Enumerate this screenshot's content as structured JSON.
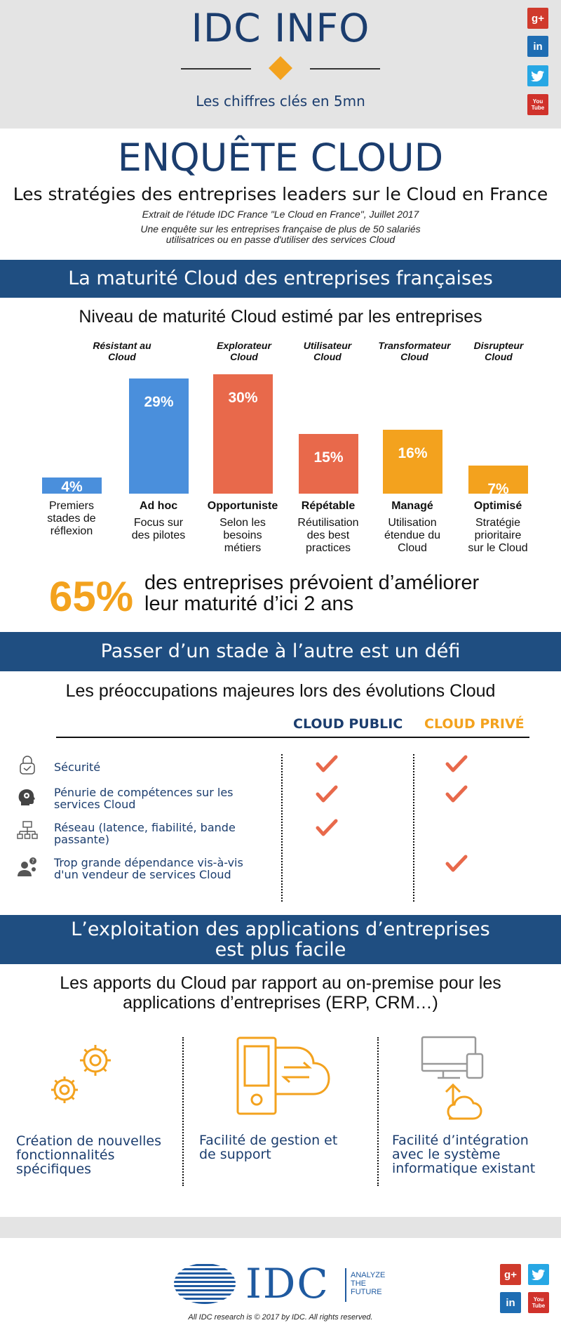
{
  "header": {
    "logo": "IDC INFO",
    "tagline": "Les chiffres clés en 5mn"
  },
  "social": {
    "googleplus": "g+",
    "linkedin": "in",
    "twitter": "t",
    "youtube": "You Tube"
  },
  "title": "ENQUÊTE CLOUD",
  "subtitle": "Les stratégies des entreprises leaders sur le Cloud en France",
  "source_line": "Extrait de l'étude IDC France \"Le Cloud en France\", Juillet 2017",
  "desc_line1": "Une enquête sur les entreprises française de plus de 50 salariés",
  "desc_line2": "utilisatrices ou en passe d'utiliser des services Cloud",
  "section1": {
    "band": "La maturité Cloud des entreprises françaises",
    "heading": "Niveau de maturité Cloud estimé par les entreprises"
  },
  "chart_data": {
    "type": "bar",
    "title": "Niveau de maturité Cloud estimé par les entreprises",
    "categories": [
      "Premiers stades de réflexion",
      "Ad hoc",
      "Opportuniste",
      "Répétable",
      "Managé",
      "Optimisé"
    ],
    "values": [
      4,
      29,
      30,
      15,
      16,
      7
    ],
    "value_labels": [
      "4%",
      "29%",
      "30%",
      "15%",
      "16%",
      "7%"
    ],
    "colors": [
      "#4a8fdc",
      "#4a8fdc",
      "#e8694b",
      "#e8694b",
      "#f3a21e",
      "#f3a21e"
    ],
    "group_labels": [
      {
        "l1": "Résistant au",
        "l2": "Cloud"
      },
      {
        "l1": "Explorateur",
        "l2": "Cloud"
      },
      {
        "l1": "Utilisateur",
        "l2": "Cloud"
      },
      {
        "l1": "Transformateur",
        "l2": "Cloud"
      },
      {
        "l1": "Disrupteur",
        "l2": "Cloud"
      }
    ],
    "bars": [
      {
        "name": "",
        "desc": [
          "Premiers",
          "stades de",
          "réflexion"
        ]
      },
      {
        "name": "Ad hoc",
        "desc": [
          "Focus sur",
          "des pilotes"
        ]
      },
      {
        "name": "Opportuniste",
        "desc": [
          "Selon les",
          "besoins",
          "métiers"
        ]
      },
      {
        "name": "Répétable",
        "desc": [
          "Réutilisation",
          "des best",
          "practices"
        ]
      },
      {
        "name": "Managé",
        "desc": [
          "Utilisation",
          "étendue du",
          "Cloud"
        ]
      },
      {
        "name": "Optimisé",
        "desc": [
          "Stratégie",
          "prioritaire",
          "sur le Cloud"
        ]
      }
    ],
    "ylim": [
      0,
      30
    ]
  },
  "highlight": {
    "pct": "65%",
    "line1": "des entreprises prévoient d’améliorer",
    "line2": "leur maturité d’ici 2 ans"
  },
  "section2": {
    "band": "Passer d’un stade à l’autre est un défi",
    "heading": "Les préoccupations majeures lors des évolutions Cloud",
    "col_public": "CLOUD PUBLIC",
    "col_prive": "CLOUD PRIVÉ",
    "public_color": "#1b3d6e",
    "prive_color": "#f3a21e",
    "check_color": "#e8694b",
    "items": [
      {
        "l1": "Sécurité",
        "l2": "",
        "icon": "lock-icon",
        "public": true,
        "prive": true
      },
      {
        "l1": "Pénurie de compétences sur les",
        "l2": "services Cloud",
        "icon": "head-gear-icon",
        "public": true,
        "prive": true
      },
      {
        "l1": "Réseau (latence, fiabilité, bande",
        "l2": "passante)",
        "icon": "network-icon",
        "public": true,
        "prive": false
      },
      {
        "l1": "Trop grande dépendance vis-à-vis",
        "l2": "d'un vendeur de services Cloud",
        "icon": "user-question-icon",
        "public": false,
        "prive": true
      }
    ]
  },
  "section3": {
    "band_l1": "L’exploitation des applications d’entreprises",
    "band_l2": "est plus facile",
    "heading_l1": "Les apports du Cloud par rapport au on-premise pour les",
    "heading_l2": "applications d’entreprises (ERP, CRM…)",
    "items": [
      {
        "l1": "Création de nouvelles",
        "l2": "fonctionnalités",
        "l3": "spécifiques",
        "icon": "gears-icon"
      },
      {
        "l1": "Facilité de gestion et",
        "l2": "de support",
        "l3": "",
        "icon": "device-cloud-icon"
      },
      {
        "l1": "Facilité d’intégration",
        "l2": "avec le système",
        "l3": "informatique existant",
        "icon": "devices-upload-icon"
      }
    ]
  },
  "footer": {
    "logo": "IDC",
    "tag1": "ANALYZE",
    "tag2": "THE",
    "tag3": "FUTURE",
    "copyright": "All IDC research is © 2017 by IDC. All rights reserved."
  }
}
